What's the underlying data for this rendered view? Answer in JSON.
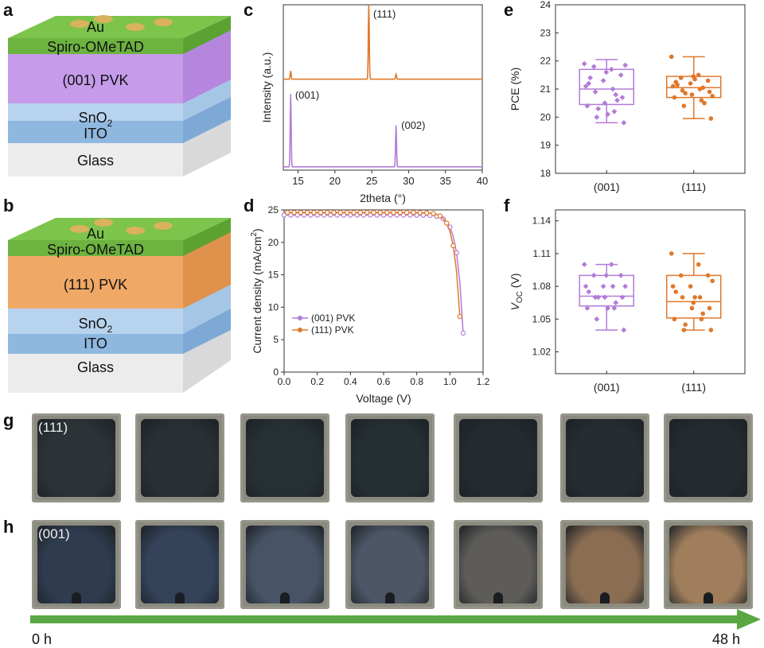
{
  "panel_labels": {
    "a": "a",
    "b": "b",
    "c": "c",
    "d": "d",
    "e": "e",
    "f": "f",
    "g": "g",
    "h": "h"
  },
  "panel_a": {
    "layers": [
      "Au",
      "Spiro-OMeTAD",
      "(001) PVK",
      "SnO",
      "2",
      "ITO",
      "Glass"
    ],
    "colors": {
      "spiro": "#6db33f",
      "pvk": "#c59bea",
      "sno2": "#b7d3ee",
      "ito": "#8fb8e0",
      "glass": "#e6e6e6",
      "au": "#d9b25c"
    }
  },
  "panel_b": {
    "layers": [
      "Au",
      "Spiro-OMeTAD",
      "(111) PVK",
      "SnO",
      "2",
      "ITO",
      "Glass"
    ],
    "colors": {
      "spiro": "#6db33f",
      "pvk": "#f0a866",
      "sno2": "#b7d3ee",
      "ito": "#8fb8e0",
      "glass": "#e6e6e6",
      "au": "#d9b25c"
    }
  },
  "chart_data": [
    {
      "id": "c",
      "type": "line",
      "xlabel": "2theta (°)",
      "ylabel": "Intensity (a.u.)",
      "xlim": [
        13,
        40
      ],
      "xticks": [
        15,
        20,
        25,
        30,
        35,
        40
      ],
      "series": [
        {
          "name": "(111)",
          "color": "#e0782a",
          "baseline": 0.55,
          "peaks": [
            [
              14.0,
              0.05
            ],
            [
              24.6,
              0.45
            ],
            [
              28.3,
              0.03
            ]
          ]
        },
        {
          "name": "(001)",
          "color": "#b27cd8",
          "baseline": 0.02,
          "peaks": [
            [
              14.0,
              0.44
            ],
            [
              28.3,
              0.25
            ]
          ]
        }
      ],
      "annotations": [
        "(111)",
        "(001)",
        "(002)"
      ]
    },
    {
      "id": "d",
      "type": "line",
      "xlabel": "Voltage (V)",
      "ylabel": "Current density (mA/cm",
      "ylabel_sup": "2",
      "ylabel_end": ")",
      "xlim": [
        0,
        1.2
      ],
      "ylim": [
        0,
        25
      ],
      "xticks": [
        "0.0",
        "0.2",
        "0.4",
        "0.6",
        "0.8",
        "1.0",
        "1.2"
      ],
      "yticks": [
        "0",
        "5",
        "10",
        "15",
        "20",
        "25"
      ],
      "series": [
        {
          "name": "(001) PVK",
          "color": "#b27cd8",
          "jsc": 24.2,
          "voc": 1.09
        },
        {
          "name": "(111) PVK",
          "color": "#e0782a",
          "jsc": 24.6,
          "voc": 1.075
        }
      ]
    },
    {
      "id": "e",
      "type": "box",
      "ylabel": "PCE (%)",
      "ylim": [
        18,
        24
      ],
      "yticks": [
        "18",
        "19",
        "20",
        "21",
        "22",
        "23",
        "24"
      ],
      "categories": [
        "(001)",
        "(111)"
      ],
      "boxes": [
        {
          "min": 19.8,
          "q1": 20.45,
          "median": 21.0,
          "q3": 21.7,
          "max": 22.05,
          "color": "#b27cd8",
          "points": [
            21.9,
            21.7,
            21.8,
            21.5,
            21.3,
            21.1,
            21.0,
            20.9,
            20.7,
            20.5,
            20.4,
            20.2,
            20.0,
            19.8,
            21.6,
            21.2,
            20.8,
            20.3,
            21.85,
            20.1,
            21.4,
            20.6
          ]
        },
        {
          "min": 19.95,
          "q1": 20.7,
          "median": 21.05,
          "q3": 21.45,
          "max": 22.15,
          "color": "#e0782a",
          "points": [
            22.15,
            21.5,
            21.4,
            21.3,
            21.2,
            21.1,
            21.0,
            20.95,
            20.9,
            20.8,
            20.7,
            20.6,
            20.4,
            19.95,
            21.45,
            21.25,
            21.05,
            20.85,
            20.75,
            21.35,
            21.15,
            20.5
          ]
        }
      ]
    },
    {
      "id": "f",
      "type": "box",
      "ylabel": "V",
      "ylabel_sub": "OC",
      "ylabel_end": " (V)",
      "ylim": [
        1.0,
        1.15
      ],
      "yticks": [
        "1.02",
        "1.05",
        "1.08",
        "1.11",
        "1.14"
      ],
      "categories": [
        "(001)",
        "(111)"
      ],
      "boxes": [
        {
          "min": 1.04,
          "q1": 1.062,
          "median": 1.071,
          "q3": 1.09,
          "max": 1.1,
          "color": "#b27cd8",
          "points": [
            1.1,
            1.1,
            1.09,
            1.09,
            1.08,
            1.08,
            1.08,
            1.07,
            1.07,
            1.07,
            1.06,
            1.06,
            1.05,
            1.04,
            1.09,
            1.075,
            1.065,
            1.07,
            1.08,
            1.06
          ]
        },
        {
          "min": 1.04,
          "q1": 1.051,
          "median": 1.066,
          "q3": 1.09,
          "max": 1.11,
          "color": "#e0782a",
          "points": [
            1.11,
            1.1,
            1.09,
            1.09,
            1.08,
            1.08,
            1.07,
            1.07,
            1.06,
            1.06,
            1.05,
            1.05,
            1.04,
            1.04,
            1.065,
            1.075,
            1.055,
            1.045,
            1.085,
            1.07
          ]
        }
      ]
    }
  ],
  "photo_rows": {
    "g": {
      "label": "(111)",
      "colors": [
        "#2b3336",
        "#283034",
        "#263033",
        "#252f32",
        "#232b2f",
        "#252d31",
        "#232b2f"
      ]
    },
    "h": {
      "label": "(001)",
      "colors": [
        "#2f3b4e",
        "#34425a",
        "#485466",
        "#4d5666",
        "#5e5c58",
        "#8a6d52",
        "#a07e5c"
      ]
    }
  },
  "time_arrow": {
    "start": "0 h",
    "end": "48 h",
    "color": "#5aa843"
  }
}
